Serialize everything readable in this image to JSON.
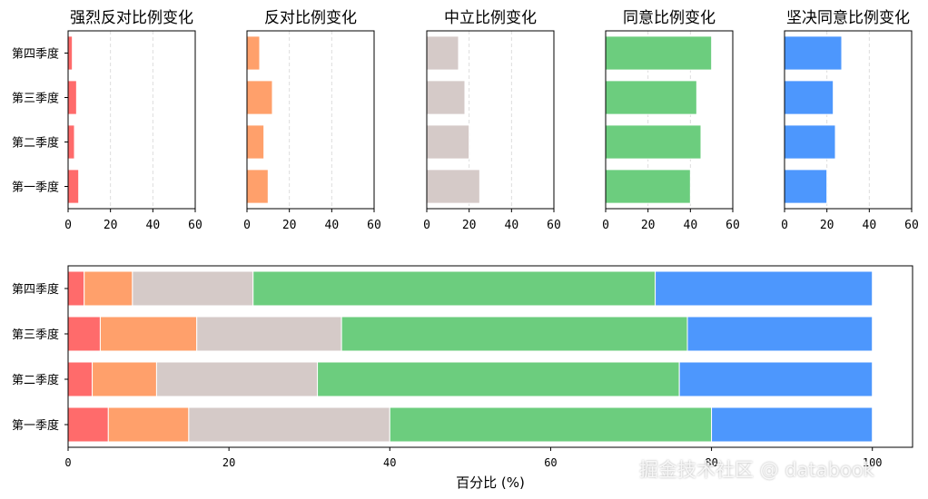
{
  "chart_data": [
    {
      "type": "bar",
      "orientation": "horizontal",
      "title": "强烈反对比例变化",
      "categories": [
        "第一季度",
        "第二季度",
        "第三季度",
        "第四季度"
      ],
      "values": [
        5,
        3,
        4,
        2
      ],
      "xlim": [
        0,
        60
      ],
      "xticks": [
        "0",
        "20",
        "40",
        "60"
      ],
      "color": "#ff6b6b",
      "grid": "x dashed"
    },
    {
      "type": "bar",
      "orientation": "horizontal",
      "title": "反对比例变化",
      "categories": [
        "第一季度",
        "第二季度",
        "第三季度",
        "第四季度"
      ],
      "values": [
        10,
        8,
        12,
        6
      ],
      "xlim": [
        0,
        60
      ],
      "xticks": [
        "0",
        "20",
        "40",
        "60"
      ],
      "color": "#ffa06b",
      "grid": "x dashed"
    },
    {
      "type": "bar",
      "orientation": "horizontal",
      "title": "中立比例变化",
      "categories": [
        "第一季度",
        "第二季度",
        "第三季度",
        "第四季度"
      ],
      "values": [
        25,
        20,
        18,
        15
      ],
      "xlim": [
        0,
        60
      ],
      "xticks": [
        "0",
        "20",
        "40",
        "60"
      ],
      "color": "#d5cac8",
      "grid": "x dashed"
    },
    {
      "type": "bar",
      "orientation": "horizontal",
      "title": "同意比例变化",
      "categories": [
        "第一季度",
        "第二季度",
        "第三季度",
        "第四季度"
      ],
      "values": [
        40,
        45,
        43,
        50
      ],
      "xlim": [
        0,
        60
      ],
      "xticks": [
        "0",
        "20",
        "40",
        "60"
      ],
      "color": "#6ccd7e",
      "grid": "x dashed"
    },
    {
      "type": "bar",
      "orientation": "horizontal",
      "title": "坚决同意比例变化",
      "categories": [
        "第一季度",
        "第二季度",
        "第三季度",
        "第四季度"
      ],
      "values": [
        20,
        24,
        23,
        27
      ],
      "xlim": [
        0,
        60
      ],
      "xticks": [
        "0",
        "20",
        "40",
        "60"
      ],
      "color": "#4d97fd",
      "grid": "x dashed"
    },
    {
      "type": "bar",
      "orientation": "horizontal",
      "stacked": true,
      "categories": [
        "第一季度",
        "第二季度",
        "第三季度",
        "第四季度"
      ],
      "series": [
        {
          "values": [
            5,
            3,
            4,
            2
          ],
          "color": "#ff6b6b"
        },
        {
          "values": [
            10,
            8,
            12,
            6
          ],
          "color": "#ffa06b"
        },
        {
          "values": [
            25,
            20,
            18,
            15
          ],
          "color": "#d5cac8"
        },
        {
          "values": [
            40,
            45,
            43,
            50
          ],
          "color": "#6ccd7e"
        },
        {
          "values": [
            20,
            24,
            23,
            27
          ],
          "color": "#4d97fd"
        }
      ],
      "xlabel": "百分比 (%)",
      "xlim": [
        0,
        105
      ],
      "xticks": [
        "0",
        "20",
        "40",
        "60",
        "80",
        "100"
      ],
      "grid": "none"
    }
  ],
  "watermark": "掘金技术社区 @ databook"
}
